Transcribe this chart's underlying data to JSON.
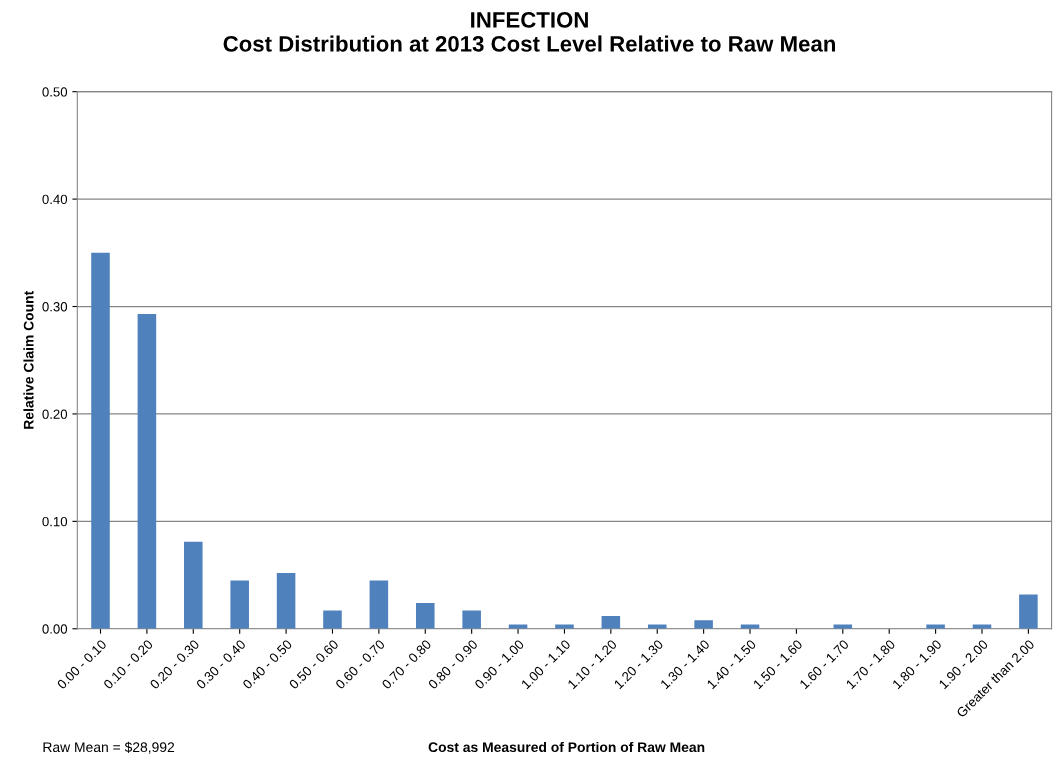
{
  "chart_data": {
    "type": "bar",
    "title": "INFECTION\nCost Distribution at 2013 Cost Level Relative to Raw Mean",
    "xlabel": "Cost as Measured of Portion of Raw Mean",
    "ylabel": "Relative Claim Count",
    "categories": [
      "0.00 - 0.10",
      "0.10 - 0.20",
      "0.20 - 0.30",
      "0.30 - 0.40",
      "0.40 - 0.50",
      "0.50 - 0.60",
      "0.60 - 0.70",
      "0.70 - 0.80",
      "0.80 - 0.90",
      "0.90 - 1.00",
      "1.00 - 1.10",
      "1.10 - 1.20",
      "1.20 - 1.30",
      "1.30 - 1.40",
      "1.40 - 1.50",
      "1.50 - 1.60",
      "1.60 - 1.70",
      "1.70 - 1.80",
      "1.80 - 1.90",
      "1.90 - 2.00",
      "Greater than 2.00"
    ],
    "values": [
      0.35,
      0.293,
      0.081,
      0.045,
      0.052,
      0.017,
      0.045,
      0.024,
      0.017,
      0.004,
      0.004,
      0.012,
      0.004,
      0.008,
      0.004,
      0,
      0.004,
      0,
      0.004,
      0.004,
      0.032
    ],
    "color": "#4f81bd",
    "ylim": [
      0,
      0.5
    ],
    "yticks": [
      {
        "value": 0,
        "label": "0.00"
      },
      {
        "value": 0.1,
        "label": "0.10"
      },
      {
        "value": 0.2,
        "label": "0.20"
      },
      {
        "value": 0.3,
        "label": "0.30"
      },
      {
        "value": 0.4,
        "label": "0.40"
      },
      {
        "value": 0.5,
        "label": "0.50"
      }
    ],
    "grid": "y",
    "annotations": [
      "Raw Mean = $28,992"
    ]
  }
}
